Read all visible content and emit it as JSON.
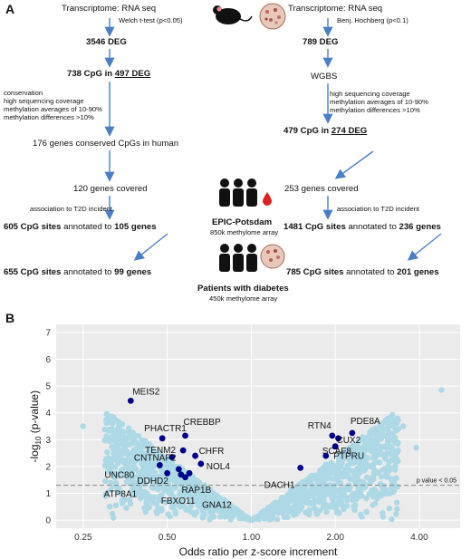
{
  "panel_a": {
    "label": "A",
    "left": {
      "header": "Transcriptome: RNA seq",
      "test": "Welch t-test (p<0.05)",
      "deg": "3546 DEG",
      "cpg_prefix": "738 CpG in ",
      "cpg_deg": "497 DEG",
      "filters": [
        "conservation",
        "high sequencing coverage",
        "methylation averages of 10-90%",
        "methylation differences >10%"
      ],
      "conserved": "176 genes conserved CpGs in human",
      "covered": "120 genes covered",
      "association": "association to T2D incident",
      "epic_bold": "605 CpG sites",
      "epic_rest": " annotated to ",
      "epic_genes": "105 genes",
      "diab_bold": "655 CpG sites",
      "diab_rest": " annotated to ",
      "diab_genes": "99 genes"
    },
    "right": {
      "header": "Transcriptome: RNA seq",
      "test": "Benj. Hochberg (p<0.1)",
      "deg": "789 DEG",
      "wgbs": "WGBS",
      "filters": [
        "high sequencing coverage",
        "methylation averages of 10-90%",
        "methylation differences >10%"
      ],
      "cpg_prefix": "479 CpG in ",
      "cpg_deg": "274 DEG",
      "covered": "253 genes covered",
      "association": "association to T2D incident",
      "epic_bold": "1481 CpG sites",
      "epic_rest": " annotated to ",
      "epic_genes": "236 genes",
      "diab_bold": "785 CpG sites",
      "diab_rest": " annotated to ",
      "diab_genes": "201 genes"
    },
    "epic": {
      "title": "EPIC-Potsdam",
      "subtitle": "850k methylome array"
    },
    "diabetes": {
      "title": "Patients with diabetes",
      "subtitle": "450k methylome array"
    },
    "icon_names": [
      "mouse-icon",
      "pancreas-islet-icon",
      "people-group-icon",
      "blood-drop-icon"
    ]
  },
  "chart_data": {
    "type": "scatter",
    "panel_label": "B",
    "xlabel": "Odds ratio per z-score increment",
    "ylabel_parts": [
      "-log",
      "10",
      " (p-value)"
    ],
    "x_scale": "log2",
    "xlim": [
      0.2,
      5.6
    ],
    "ylim": [
      -0.3,
      7.3
    ],
    "x_ticks": [
      0.25,
      0.5,
      1.0,
      2.0,
      4.0
    ],
    "x_tick_labels": [
      "0.25",
      "0.50",
      "1.00",
      "2.00",
      "4.00"
    ],
    "y_ticks": [
      0,
      1,
      2,
      3,
      4,
      5,
      6,
      7
    ],
    "y_tick_labels": [
      "0",
      "1",
      "2",
      "3",
      "4",
      "5",
      "6",
      "7"
    ],
    "threshold": {
      "y": 1.3,
      "label": "p value < 0.05"
    },
    "background_color": "#ebebeb",
    "point_color": "#add8e6",
    "highlight_color": "#00008b",
    "highlighted": [
      {
        "label": "MEIS2",
        "x": 0.37,
        "y": 4.45
      },
      {
        "label": "PHACTR1",
        "x": 0.48,
        "y": 3.05
      },
      {
        "label": "CREBBP",
        "x": 0.58,
        "y": 3.15
      },
      {
        "label": "TENM2",
        "x": 0.57,
        "y": 2.6
      },
      {
        "label": "CHFR",
        "x": 0.63,
        "y": 2.4
      },
      {
        "label": "CNTNAP2",
        "x": 0.52,
        "y": 2.35
      },
      {
        "label": "NOL4",
        "x": 0.66,
        "y": 2.1
      },
      {
        "label": "UNC80",
        "x": 0.47,
        "y": 2.05
      },
      {
        "label": "DDHD2",
        "x": 0.55,
        "y": 1.9
      },
      {
        "label": "ATP8A1",
        "x": 0.5,
        "y": 1.75
      },
      {
        "label": "RAP1B",
        "x": 0.58,
        "y": 1.6
      },
      {
        "label": "FBXO11",
        "x": 0.56,
        "y": 1.7
      },
      {
        "label": "GNA12",
        "x": 0.6,
        "y": 1.75
      },
      {
        "label": "DACH1",
        "x": 1.5,
        "y": 1.95
      },
      {
        "label": "SCAF8",
        "x": 1.85,
        "y": 2.4
      },
      {
        "label": "RTN4",
        "x": 1.95,
        "y": 3.15
      },
      {
        "label": "PDE8A",
        "x": 2.3,
        "y": 3.25
      },
      {
        "label": "CUX2",
        "x": 2.05,
        "y": 3.05
      },
      {
        "label": "PTPRU",
        "x": 2.0,
        "y": 2.75
      }
    ]
  }
}
